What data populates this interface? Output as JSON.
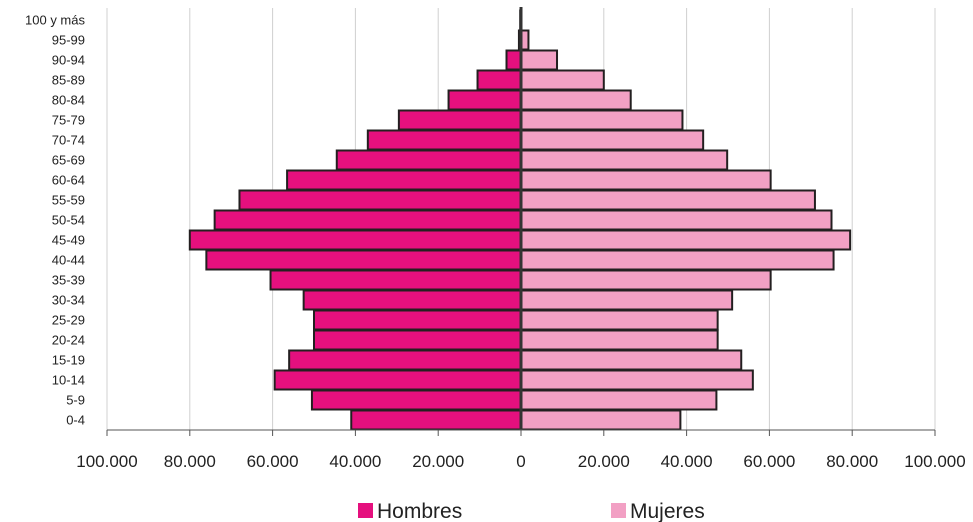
{
  "chart_data": {
    "type": "bar",
    "orientation": "horizontal",
    "grid": true,
    "legend_position": "bottom",
    "xlim": [
      -100000,
      100000
    ],
    "x_ticks": [
      {
        "value": -100000,
        "label": "100.000"
      },
      {
        "value": -80000,
        "label": "80.000"
      },
      {
        "value": -60000,
        "label": "60.000"
      },
      {
        "value": -40000,
        "label": "40.000"
      },
      {
        "value": -20000,
        "label": "20.000"
      },
      {
        "value": 0,
        "label": "0"
      },
      {
        "value": 20000,
        "label": "20.000"
      },
      {
        "value": 40000,
        "label": "40.000"
      },
      {
        "value": 60000,
        "label": "60.000"
      },
      {
        "value": 80000,
        "label": "80.000"
      },
      {
        "value": 100000,
        "label": "100.000"
      }
    ],
    "categories": [
      "100 y más",
      "95-99",
      "90-94",
      "85-89",
      "80-84",
      "75-79",
      "70-74",
      "65-69",
      "60-64",
      "55-59",
      "50-54",
      "45-49",
      "40-44",
      "35-39",
      "30-34",
      "25-29",
      "20-24",
      "15-19",
      "10-14",
      "5-9",
      "0-4"
    ],
    "series": [
      {
        "name": "Hombres",
        "color": "#e5107e",
        "values": [
          200,
          500,
          3500,
          10500,
          17500,
          29500,
          37000,
          44500,
          56500,
          68000,
          74000,
          80000,
          76000,
          60500,
          52500,
          50000,
          50000,
          56000,
          59500,
          50500,
          41000
        ]
      },
      {
        "name": "Mujeres",
        "color": "#f2a0c4",
        "values": [
          100,
          1800,
          8700,
          20000,
          26500,
          39000,
          44000,
          49800,
          60300,
          71000,
          75000,
          79500,
          75500,
          60300,
          51000,
          47500,
          47500,
          53200,
          56000,
          47200,
          38500
        ]
      }
    ]
  }
}
